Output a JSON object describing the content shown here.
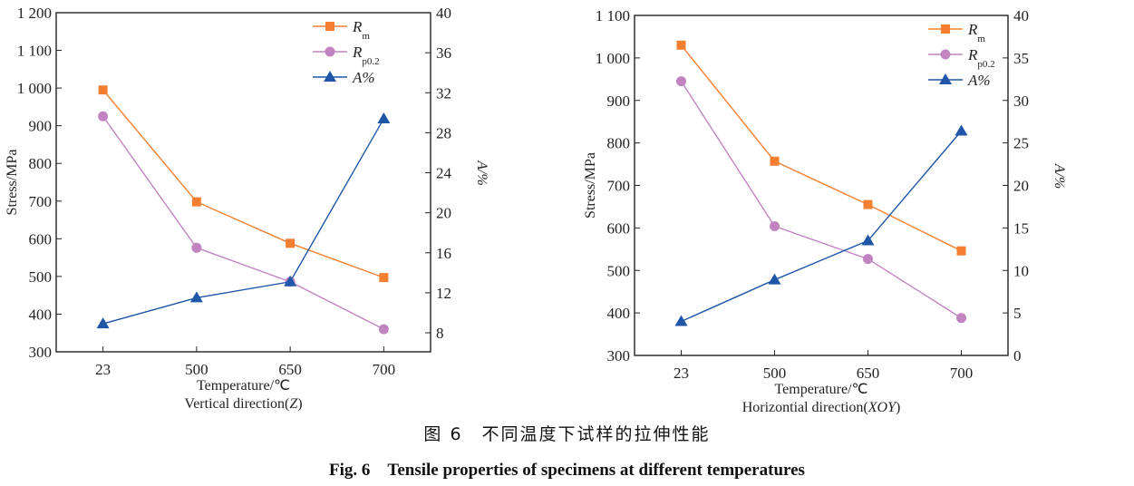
{
  "chart_data": [
    {
      "type": "line",
      "categories": [
        "23",
        "500",
        "650",
        "700"
      ],
      "xlabel": "Temperature/℃",
      "subtitle": "Vertical direction(Z)",
      "subtitle_parts": [
        "Vertical direction(",
        "Z",
        ")"
      ],
      "ylabel": "Stress/MPa",
      "y2label": "A/%",
      "ylim": [
        300,
        1200
      ],
      "yticks": [
        300,
        400,
        500,
        600,
        700,
        800,
        900,
        1000,
        1100,
        1200
      ],
      "ytick_labels": [
        "300",
        "400",
        "500",
        "600",
        "700",
        "800",
        "900",
        "1 000",
        "1 100",
        "1 200"
      ],
      "y2lim": [
        6.1,
        40
      ],
      "y2ticks": [
        8,
        12,
        16,
        20,
        24,
        28,
        32,
        36,
        40
      ],
      "legend_position": "top-right",
      "series": [
        {
          "name": "Rm",
          "label_main": "R",
          "label_sub": "m",
          "axis": "left",
          "marker": "square",
          "color": "#f47f30",
          "values": [
            995,
            698,
            588,
            497
          ]
        },
        {
          "name": "Rp0.2",
          "label_main": "R",
          "label_sub": "p0.2",
          "axis": "left",
          "marker": "circle",
          "color": "#c184c1",
          "values": [
            925,
            576,
            486,
            360
          ]
        },
        {
          "name": "A%",
          "label_main": "A%",
          "label_sub": "",
          "axis": "right",
          "marker": "triangle",
          "color": "#1f56a8",
          "values": [
            8.9,
            11.5,
            13.1,
            29.4
          ]
        }
      ]
    },
    {
      "type": "line",
      "categories": [
        "23",
        "500",
        "650",
        "700"
      ],
      "xlabel": "Temperature/℃",
      "subtitle": "Horizontial direction(XOY)",
      "subtitle_parts": [
        "Horizontial direction(",
        "XOY",
        ")"
      ],
      "ylabel": "Stress/MPa",
      "y2label": "A/%",
      "ylim": [
        300,
        1100
      ],
      "yticks": [
        300,
        400,
        500,
        600,
        700,
        800,
        900,
        1000,
        1100
      ],
      "ytick_labels": [
        "300",
        "400",
        "500",
        "600",
        "700",
        "800",
        "900",
        "1 000",
        "1 100"
      ],
      "y2lim": [
        0,
        40
      ],
      "y2ticks": [
        0,
        5,
        10,
        15,
        20,
        25,
        30,
        35,
        40
      ],
      "legend_position": "top-right",
      "series": [
        {
          "name": "Rm",
          "label_main": "R",
          "label_sub": "m",
          "axis": "left",
          "marker": "square",
          "color": "#f47f30",
          "values": [
            1030,
            757,
            655,
            546
          ]
        },
        {
          "name": "Rp0.2",
          "label_main": "R",
          "label_sub": "p0.2",
          "axis": "left",
          "marker": "circle",
          "color": "#c184c1",
          "values": [
            945,
            604,
            527,
            388
          ]
        },
        {
          "name": "A%",
          "label_main": "A%",
          "label_sub": "",
          "axis": "right",
          "marker": "triangle",
          "color": "#1f56a8",
          "values": [
            4.0,
            8.9,
            13.5,
            26.4
          ]
        }
      ]
    }
  ],
  "caption": {
    "cn": "图 6　不同温度下试样的拉伸性能",
    "en": "Fig. 6　Tensile properties of specimens at different temperatures"
  }
}
